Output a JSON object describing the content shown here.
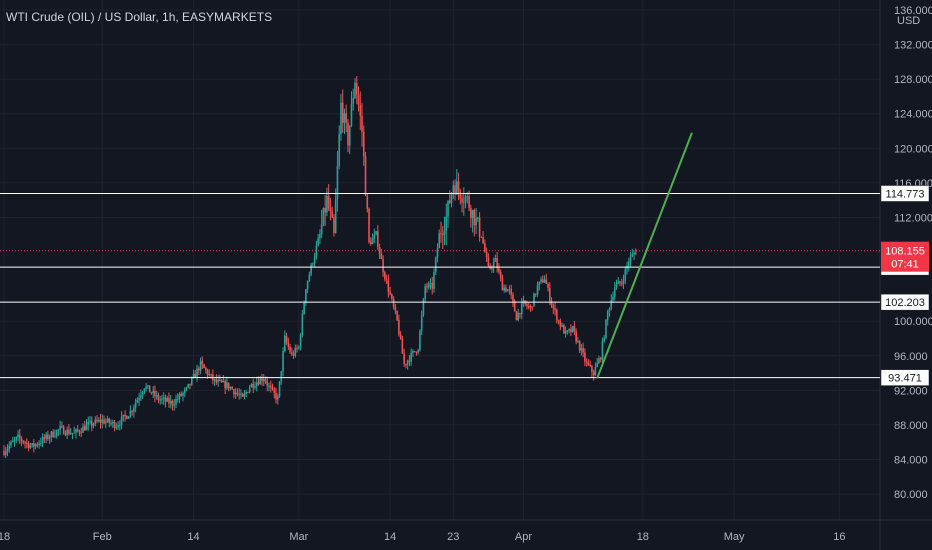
{
  "header": {
    "title": "WTI Crude (OIL) / US Dollar, 1h, EASYMARKETS"
  },
  "colors": {
    "background": "#131722",
    "grid": "#1e222d",
    "up": "#26a69a",
    "down": "#ef5350",
    "level_line": "#ffffff",
    "trendline": "#4caf50",
    "current_price_bg": "#f23645",
    "axis_text": "#b2b5be"
  },
  "chart_data": {
    "type": "candlestick",
    "title": "WTI Crude (OIL) / US Dollar, 1h, EASYMARKETS",
    "ylabel": "USD",
    "ylim": [
      77.0,
      136.0
    ],
    "grid": true,
    "y_ticks": [
      "136.000",
      "132.000",
      "128.000",
      "124.000",
      "120.000",
      "116.000",
      "112.000",
      "100.000",
      "96.000",
      "92.000",
      "88.000",
      "84.000",
      "80.000"
    ],
    "x_ticks": [
      {
        "label": "18",
        "t": 0
      },
      {
        "label": "Feb",
        "t": 14
      },
      {
        "label": "14",
        "t": 27
      },
      {
        "label": "Mar",
        "t": 42
      },
      {
        "label": "14",
        "t": 55
      },
      {
        "label": "23",
        "t": 64
      },
      {
        "label": "Apr",
        "t": 74
      },
      {
        "label": "18",
        "t": 91
      },
      {
        "label": "May",
        "t": 104
      },
      {
        "label": "16",
        "t": 119
      }
    ],
    "price_path": [
      [
        0,
        85.0
      ],
      [
        2,
        86.5
      ],
      [
        4,
        85.5
      ],
      [
        6,
        86.5
      ],
      [
        8,
        87.5
      ],
      [
        10,
        87.0
      ],
      [
        12,
        88.0
      ],
      [
        14,
        88.5
      ],
      [
        16,
        88.0
      ],
      [
        18,
        89.5
      ],
      [
        20,
        92.5
      ],
      [
        22,
        91.0
      ],
      [
        24,
        90.5
      ],
      [
        26,
        92.0
      ],
      [
        28,
        95.0
      ],
      [
        30,
        93.0
      ],
      [
        32,
        92.5
      ],
      [
        34,
        91.0
      ],
      [
        35,
        92.5
      ],
      [
        37,
        93.5
      ],
      [
        38,
        92.0
      ],
      [
        39,
        91.0
      ],
      [
        40,
        98.0
      ],
      [
        41,
        96.0
      ],
      [
        42,
        97.0
      ],
      [
        43,
        104.0
      ],
      [
        45,
        110.0
      ],
      [
        46,
        114.0
      ],
      [
        47,
        110.0
      ],
      [
        48,
        125.0
      ],
      [
        49,
        121.0
      ],
      [
        50,
        128.0
      ],
      [
        51,
        122.0
      ],
      [
        52,
        109.0
      ],
      [
        53,
        110.0
      ],
      [
        54,
        106.0
      ],
      [
        55,
        103.0
      ],
      [
        56,
        100.0
      ],
      [
        57,
        95.0
      ],
      [
        58,
        96.0
      ],
      [
        59,
        97.0
      ],
      [
        60,
        104.0
      ],
      [
        61,
        104.0
      ],
      [
        62,
        110.0
      ],
      [
        63,
        112.0
      ],
      [
        64,
        116.0
      ],
      [
        66,
        114.0
      ],
      [
        68,
        110.0
      ],
      [
        69,
        106.0
      ],
      [
        70,
        107.0
      ],
      [
        71,
        104.0
      ],
      [
        72,
        103.5
      ],
      [
        73,
        100.5
      ],
      [
        74,
        102.0
      ],
      [
        75,
        101.5
      ],
      [
        76,
        104.0
      ],
      [
        77,
        105.0
      ],
      [
        78,
        102.0
      ],
      [
        79,
        100.0
      ],
      [
        80,
        98.5
      ],
      [
        81,
        99.0
      ],
      [
        82,
        97.0
      ],
      [
        83,
        95.0
      ],
      [
        84,
        94.0
      ],
      [
        85,
        96.0
      ],
      [
        86,
        101.0
      ],
      [
        87,
        104.0
      ],
      [
        88,
        104.5
      ],
      [
        89,
        107.0
      ],
      [
        90,
        108.155
      ]
    ],
    "levels": [
      {
        "label": "114.773",
        "value": 114.773
      },
      {
        "label": "106.253",
        "value": 106.253
      },
      {
        "label": "102.203",
        "value": 102.203
      },
      {
        "label": "93.471",
        "value": 93.471
      }
    ],
    "current_price": {
      "label": "108.155",
      "value": 108.155,
      "countdown": "07:41"
    },
    "trendline": {
      "x1": 84.5,
      "y1": 93.4,
      "x2": 98.0,
      "y2": 121.8
    }
  }
}
